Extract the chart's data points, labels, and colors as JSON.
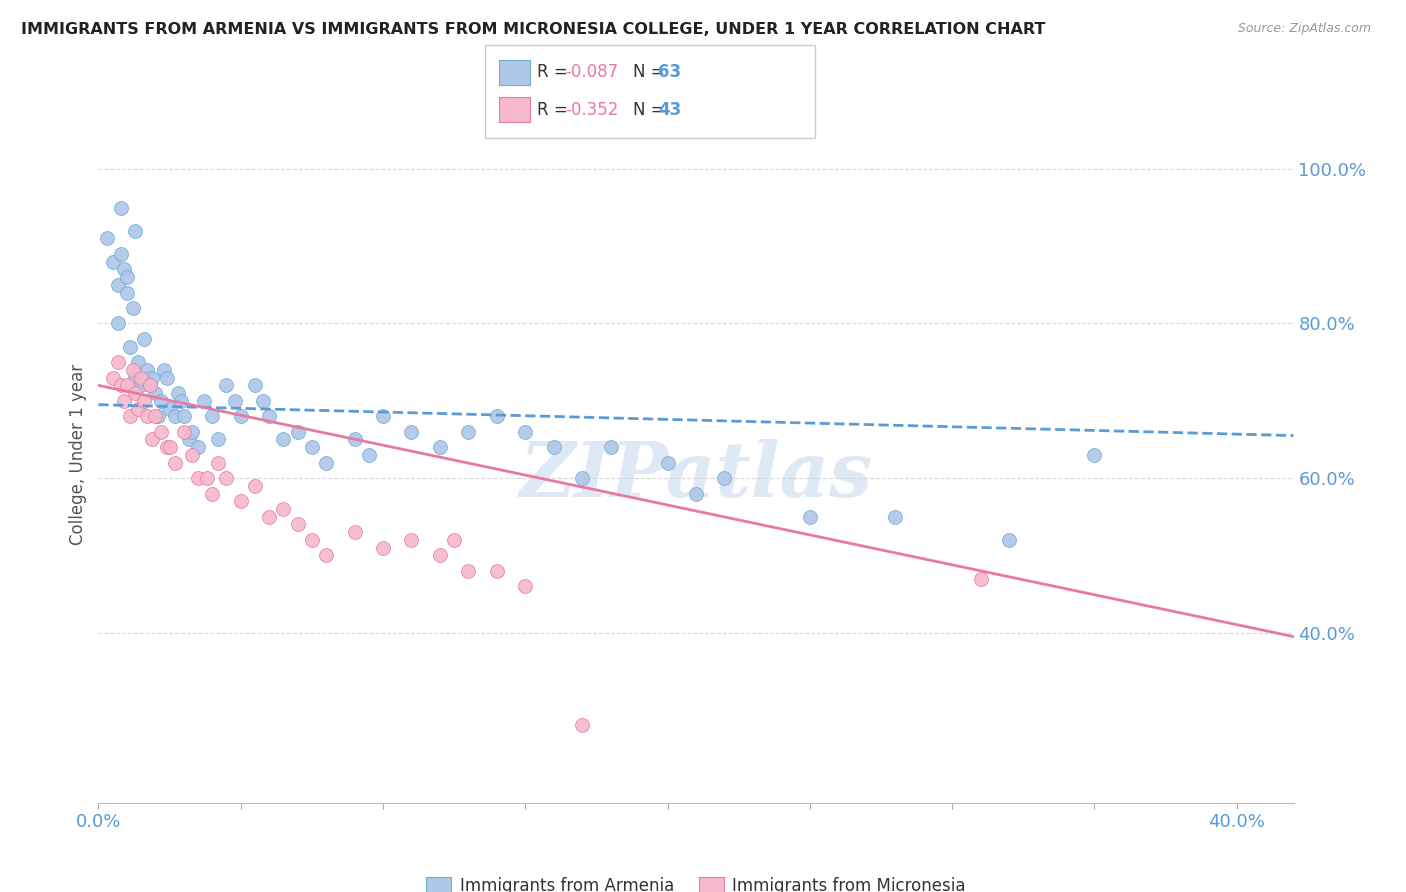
{
  "title": "IMMIGRANTS FROM ARMENIA VS IMMIGRANTS FROM MICRONESIA COLLEGE, UNDER 1 YEAR CORRELATION CHART",
  "source": "Source: ZipAtlas.com",
  "ylabel": "College, Under 1 year",
  "xlim": [
    0.0,
    0.42
  ],
  "ylim": [
    0.18,
    1.08
  ],
  "x_ticks": [
    0.0,
    0.05,
    0.1,
    0.15,
    0.2,
    0.25,
    0.3,
    0.35,
    0.4
  ],
  "y_ticks_right": [
    0.4,
    0.6,
    0.8,
    1.0
  ],
  "y_tick_labels_right": [
    "40.0%",
    "60.0%",
    "80.0%",
    "100.0%"
  ],
  "armenia_color": "#aec6e8",
  "micronesia_color": "#f5b8cc",
  "armenia_edge_color": "#6aaed6",
  "micronesia_edge_color": "#e87a9f",
  "armenia_line_color": "#5b9bd5",
  "micronesia_line_color": "#e87a9f",
  "watermark": "ZIPatlas",
  "grid_color": "#d9d9d9",
  "background_color": "#ffffff",
  "armenia_x": [
    0.003,
    0.005,
    0.007,
    0.007,
    0.008,
    0.009,
    0.01,
    0.01,
    0.011,
    0.012,
    0.013,
    0.014,
    0.015,
    0.016,
    0.017,
    0.018,
    0.019,
    0.02,
    0.021,
    0.022,
    0.023,
    0.024,
    0.025,
    0.027,
    0.028,
    0.029,
    0.03,
    0.032,
    0.033,
    0.035,
    0.037,
    0.04,
    0.042,
    0.045,
    0.048,
    0.05,
    0.055,
    0.058,
    0.06,
    0.065,
    0.07,
    0.075,
    0.08,
    0.09,
    0.095,
    0.1,
    0.11,
    0.12,
    0.13,
    0.14,
    0.15,
    0.16,
    0.17,
    0.18,
    0.2,
    0.21,
    0.22,
    0.25,
    0.28,
    0.32,
    0.008,
    0.013,
    0.35
  ],
  "armenia_y": [
    0.91,
    0.88,
    0.85,
    0.8,
    0.89,
    0.87,
    0.86,
    0.84,
    0.77,
    0.82,
    0.73,
    0.75,
    0.72,
    0.78,
    0.74,
    0.72,
    0.73,
    0.71,
    0.68,
    0.7,
    0.74,
    0.73,
    0.69,
    0.68,
    0.71,
    0.7,
    0.68,
    0.65,
    0.66,
    0.64,
    0.7,
    0.68,
    0.65,
    0.72,
    0.7,
    0.68,
    0.72,
    0.7,
    0.68,
    0.65,
    0.66,
    0.64,
    0.62,
    0.65,
    0.63,
    0.68,
    0.66,
    0.64,
    0.66,
    0.68,
    0.66,
    0.64,
    0.6,
    0.64,
    0.62,
    0.58,
    0.6,
    0.55,
    0.55,
    0.52,
    0.95,
    0.92,
    0.63
  ],
  "micronesia_x": [
    0.005,
    0.007,
    0.008,
    0.009,
    0.01,
    0.011,
    0.012,
    0.013,
    0.014,
    0.015,
    0.016,
    0.017,
    0.018,
    0.019,
    0.02,
    0.022,
    0.024,
    0.025,
    0.027,
    0.03,
    0.033,
    0.035,
    0.038,
    0.04,
    0.042,
    0.045,
    0.05,
    0.055,
    0.06,
    0.065,
    0.07,
    0.075,
    0.08,
    0.09,
    0.1,
    0.11,
    0.12,
    0.125,
    0.13,
    0.14,
    0.15,
    0.31,
    0.17
  ],
  "micronesia_y": [
    0.73,
    0.75,
    0.72,
    0.7,
    0.72,
    0.68,
    0.74,
    0.71,
    0.69,
    0.73,
    0.7,
    0.68,
    0.72,
    0.65,
    0.68,
    0.66,
    0.64,
    0.64,
    0.62,
    0.66,
    0.63,
    0.6,
    0.6,
    0.58,
    0.62,
    0.6,
    0.57,
    0.59,
    0.55,
    0.56,
    0.54,
    0.52,
    0.5,
    0.53,
    0.51,
    0.52,
    0.5,
    0.52,
    0.48,
    0.48,
    0.46,
    0.47,
    0.28
  ],
  "arm_line_x0": 0.0,
  "arm_line_x1": 0.42,
  "arm_line_y0": 0.695,
  "arm_line_y1": 0.655,
  "mic_line_x0": 0.0,
  "mic_line_x1": 0.42,
  "mic_line_y0": 0.72,
  "mic_line_y1": 0.395
}
